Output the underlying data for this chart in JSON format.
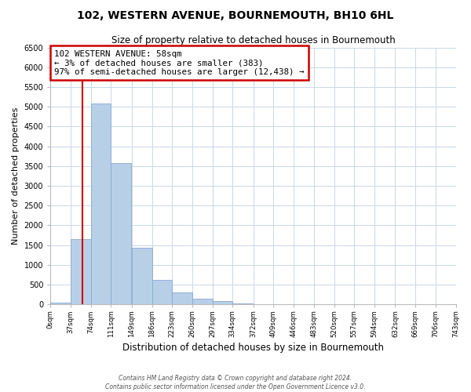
{
  "title": "102, WESTERN AVENUE, BOURNEMOUTH, BH10 6HL",
  "subtitle": "Size of property relative to detached houses in Bournemouth",
  "xlabel": "Distribution of detached houses by size in Bournemouth",
  "ylabel": "Number of detached properties",
  "bar_values": [
    50,
    1650,
    5080,
    3580,
    1430,
    620,
    300,
    145,
    75,
    30,
    5
  ],
  "bin_edges": [
    0,
    37,
    74,
    111,
    149,
    186,
    223,
    260,
    297,
    334,
    372,
    409,
    446,
    483,
    520,
    557,
    594,
    632,
    669,
    706,
    743
  ],
  "tick_labels": [
    "0sqm",
    "37sqm",
    "74sqm",
    "111sqm",
    "149sqm",
    "186sqm",
    "223sqm",
    "260sqm",
    "297sqm",
    "334sqm",
    "372sqm",
    "409sqm",
    "446sqm",
    "483sqm",
    "520sqm",
    "557sqm",
    "594sqm",
    "632sqm",
    "669sqm",
    "706sqm",
    "743sqm"
  ],
  "bar_color": "#b8cfe8",
  "bar_edge_color": "#88aad0",
  "property_line_x": 58,
  "property_line_color": "#cc0000",
  "annotation_line1": "102 WESTERN AVENUE: 58sqm",
  "annotation_line2": "← 3% of detached houses are smaller (383)",
  "annotation_line3": "97% of semi-detached houses are larger (12,438) →",
  "annotation_box_color": "#ffffff",
  "annotation_box_edge": "#cc0000",
  "ylim": [
    0,
    6500
  ],
  "yticks": [
    0,
    500,
    1000,
    1500,
    2000,
    2500,
    3000,
    3500,
    4000,
    4500,
    5000,
    5500,
    6000,
    6500
  ],
  "footer_line1": "Contains HM Land Registry data © Crown copyright and database right 2024.",
  "footer_line2": "Contains public sector information licensed under the Open Government Licence v3.0.",
  "background_color": "#ffffff",
  "grid_color": "#c8d8e8",
  "title_fontsize": 10,
  "subtitle_fontsize": 8.5
}
